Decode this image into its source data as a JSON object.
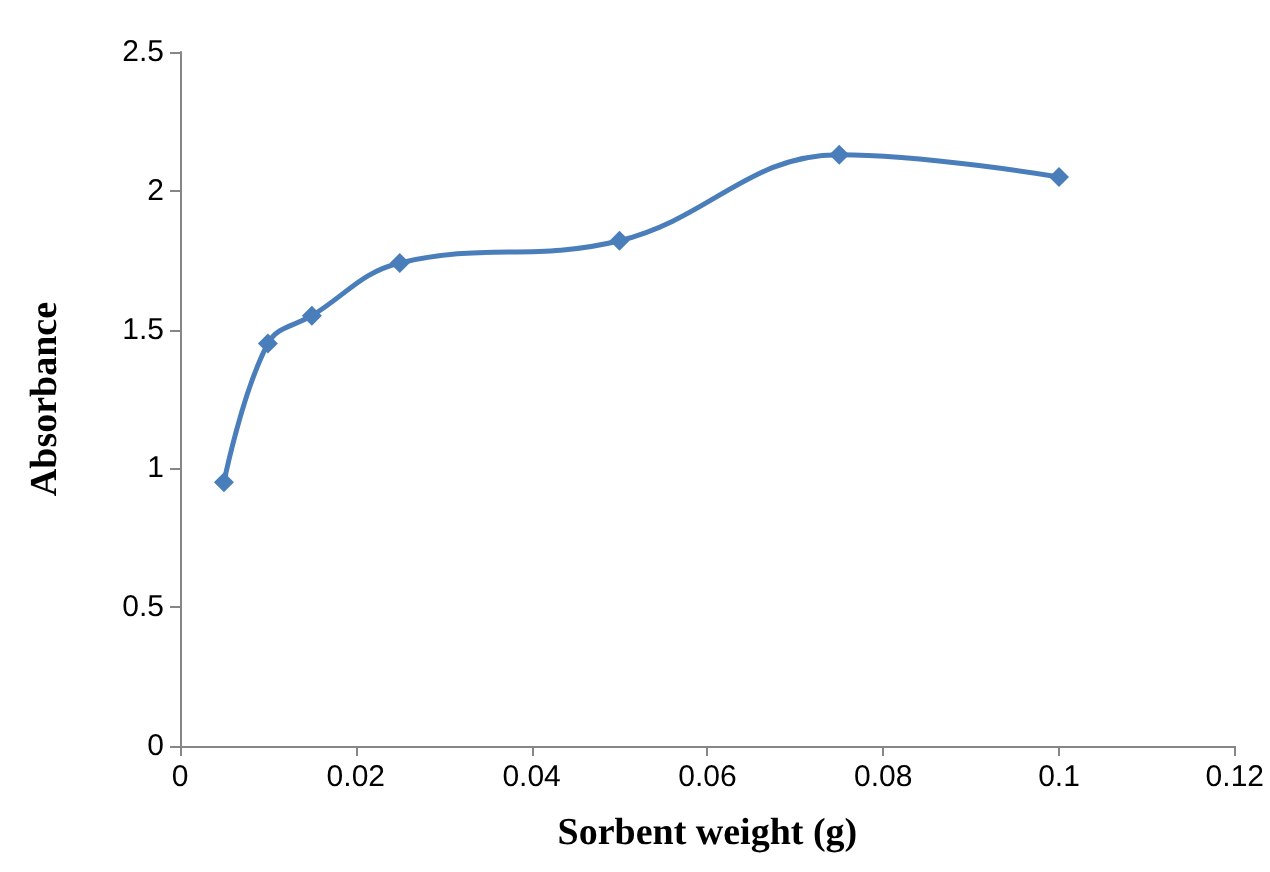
{
  "chart_data": {
    "type": "line",
    "xlabel": "Sorbent weight (g)",
    "ylabel": "Absorbance",
    "x": [
      0.005,
      0.01,
      0.015,
      0.025,
      0.05,
      0.075,
      0.1
    ],
    "series": [
      {
        "color": "#4a7ebb",
        "values": [
          0.95,
          1.45,
          1.55,
          1.74,
          1.82,
          2.13,
          2.05
        ]
      }
    ],
    "xlim": [
      0,
      0.12
    ],
    "xticks": [
      0,
      0.02,
      0.04,
      0.06,
      0.08,
      0.1,
      0.12
    ],
    "ylim": [
      0,
      2.5
    ],
    "yticks": [
      0,
      0.5,
      1,
      1.5,
      2,
      2.5
    ],
    "grid": false,
    "marker": "diamond",
    "line_style": "solid"
  }
}
